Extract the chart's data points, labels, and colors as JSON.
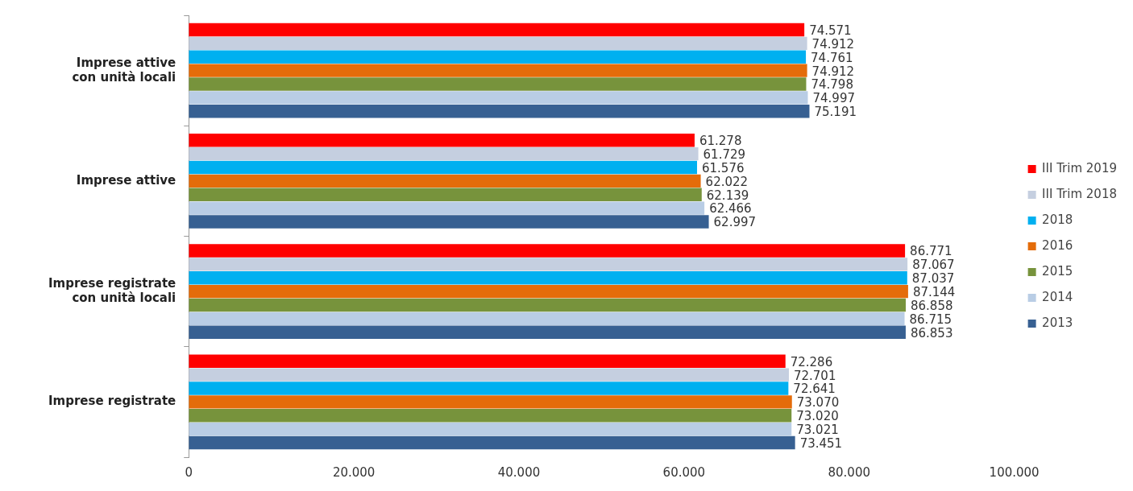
{
  "chart_data": {
    "type": "bar",
    "orientation": "horizontal",
    "categories": [
      "Imprese attive\ncon unità locali",
      "Imprese attive",
      "Imprese registrate\ncon unità locali",
      "Imprese registrate"
    ],
    "series": [
      {
        "name": "III Trim 2019",
        "color": "#ff0000",
        "values": [
          74571,
          61278,
          86771,
          72286
        ],
        "value_labels": [
          "74.571",
          "61.278",
          "86.771",
          "72.286"
        ]
      },
      {
        "name": "III Trim 2018",
        "color": "#c5cfe0",
        "values": [
          74912,
          61729,
          87067,
          72701
        ],
        "value_labels": [
          "74.912",
          "61.729",
          "87.067",
          "72.701"
        ]
      },
      {
        "name": "2018",
        "color": "#00b0f0",
        "values": [
          74761,
          61576,
          87037,
          72641
        ],
        "value_labels": [
          "74.761",
          "61.576",
          "87.037",
          "72.641"
        ]
      },
      {
        "name": "2016",
        "color": "#e46c0a",
        "values": [
          74912,
          62022,
          87144,
          73070
        ],
        "value_labels": [
          "74.912",
          "62.022",
          "87.144",
          "73.070"
        ]
      },
      {
        "name": "2015",
        "color": "#77933c",
        "values": [
          74798,
          62139,
          86858,
          73020
        ],
        "value_labels": [
          "74.798",
          "62.139",
          "86.858",
          "73.020"
        ]
      },
      {
        "name": "2014",
        "color": "#b9cde5",
        "values": [
          74997,
          62466,
          86715,
          73021
        ],
        "value_labels": [
          "74.997",
          "62.466",
          "86.715",
          "73.021"
        ]
      },
      {
        "name": "2013",
        "color": "#376092",
        "values": [
          75191,
          62997,
          86853,
          73451
        ],
        "value_labels": [
          "75.191",
          "62.997",
          "86.853",
          "73.451"
        ]
      }
    ],
    "xlim": [
      0,
      100000
    ],
    "xticks": [
      0,
      {
        "value": 20000,
        "label": "20.000"
      },
      {
        "value": 40000,
        "label": "40.000"
      },
      {
        "value": 60000,
        "label": "60.000"
      },
      {
        "value": 80000,
        "label": "80.000"
      },
      {
        "value": 100000,
        "label": "100.000"
      }
    ],
    "grid": false,
    "legend": "right"
  }
}
